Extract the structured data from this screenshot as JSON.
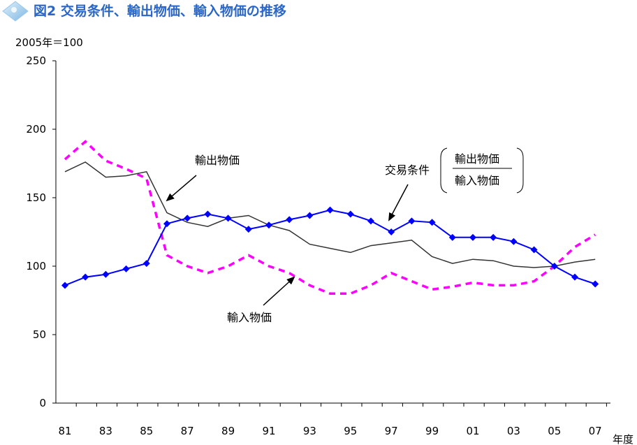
{
  "chart_data": {
    "type": "line",
    "title": "図2 交易条件、輸出物価、輸入物価の推移",
    "ylabel": "2005年＝100",
    "xlabel": "年度",
    "ylim": [
      0,
      250
    ],
    "y_ticks": [
      "0",
      "50",
      "100",
      "150",
      "200",
      "250"
    ],
    "x_tick_labels": [
      "81",
      "83",
      "85",
      "87",
      "89",
      "91",
      "93",
      "95",
      "97",
      "99",
      "01",
      "03",
      "05",
      "07"
    ],
    "x": [
      "81",
      "82",
      "83",
      "84",
      "85",
      "86",
      "87",
      "88",
      "89",
      "90",
      "91",
      "92",
      "93",
      "94",
      "95",
      "96",
      "97",
      "98",
      "99",
      "00",
      "01",
      "02",
      "03",
      "04",
      "05",
      "06",
      "07"
    ],
    "grid": false,
    "series": [
      {
        "name": "輸出物価",
        "style": "solid",
        "color": "#333333",
        "values": [
          169,
          176,
          165,
          166,
          169,
          139,
          132,
          129,
          135,
          137,
          130,
          126,
          116,
          113,
          110,
          115,
          117,
          119,
          107,
          102,
          105,
          104,
          100,
          99,
          100,
          103,
          105
        ]
      },
      {
        "name": "交易条件",
        "style": "solid-diamond",
        "color": "#0000ff",
        "values": [
          86,
          92,
          94,
          98,
          102,
          131,
          135,
          138,
          135,
          127,
          130,
          134,
          137,
          141,
          138,
          133,
          125,
          133,
          132,
          121,
          121,
          121,
          118,
          112,
          100,
          92,
          87
        ]
      },
      {
        "name": "輸入物価",
        "style": "dashed",
        "color": "#ff00ff",
        "values": [
          178,
          191,
          177,
          171,
          164,
          108,
          100,
          95,
          100,
          108,
          100,
          95,
          86,
          80,
          80,
          86,
          95,
          89,
          83,
          85,
          88,
          86,
          86,
          89,
          100,
          114,
          123
        ]
      }
    ],
    "annotations": {
      "export_label": "輸出物価",
      "import_label": "輸入物価",
      "tot_label": "交易条件",
      "fraction_numerator": "輸出物価",
      "fraction_denominator": "輸入物価"
    }
  }
}
